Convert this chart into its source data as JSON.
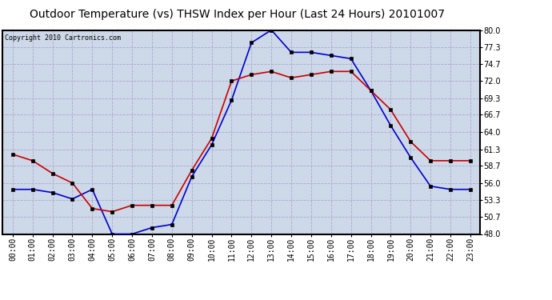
{
  "title": "Outdoor Temperature (vs) THSW Index per Hour (Last 24 Hours) 20101007",
  "copyright": "Copyright 2010 Cartronics.com",
  "hours": [
    0,
    1,
    2,
    3,
    4,
    5,
    6,
    7,
    8,
    9,
    10,
    11,
    12,
    13,
    14,
    15,
    16,
    17,
    18,
    19,
    20,
    21,
    22,
    23
  ],
  "temp_blue": [
    55.0,
    55.0,
    54.5,
    53.5,
    55.0,
    48.0,
    48.0,
    49.0,
    49.5,
    57.0,
    62.0,
    69.0,
    78.0,
    80.0,
    76.5,
    76.5,
    76.0,
    75.5,
    70.5,
    65.0,
    60.0,
    55.5,
    55.0,
    55.0
  ],
  "thsw_red": [
    60.5,
    59.5,
    57.5,
    56.0,
    52.0,
    51.5,
    52.5,
    52.5,
    52.5,
    58.0,
    63.0,
    72.0,
    73.0,
    73.5,
    72.5,
    73.0,
    73.5,
    73.5,
    70.5,
    67.5,
    62.5,
    59.5,
    59.5,
    59.5
  ],
  "ylim": [
    48.0,
    80.0
  ],
  "yticks": [
    48.0,
    50.7,
    53.3,
    56.0,
    58.7,
    61.3,
    64.0,
    66.7,
    69.3,
    72.0,
    74.7,
    77.3,
    80.0
  ],
  "blue_color": "#0000cc",
  "red_color": "#cc0000",
  "bg_color": "#cdd8e8",
  "grid_color": "#aaaacc",
  "marker": "s",
  "marker_size": 3,
  "title_fontsize": 10,
  "tick_fontsize": 7,
  "copyright_fontsize": 6
}
